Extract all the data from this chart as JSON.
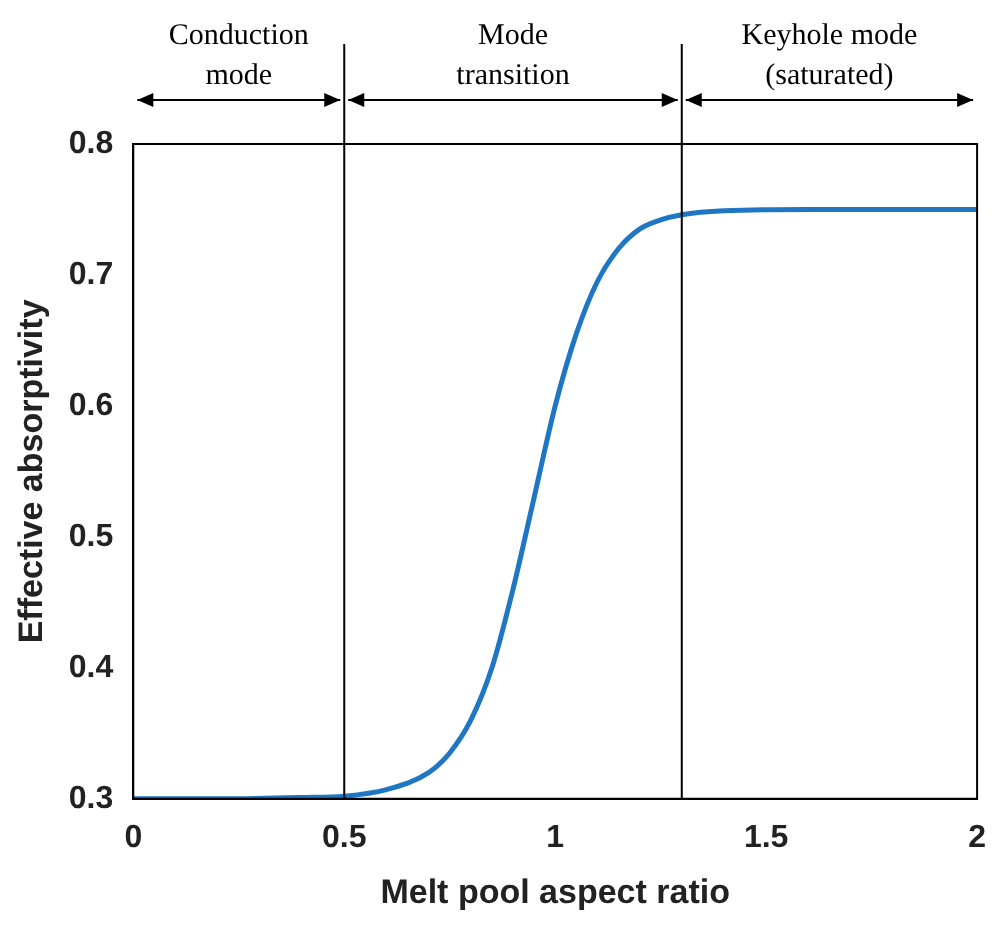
{
  "chart_data": {
    "type": "line",
    "xlabel": "Melt pool aspect ratio",
    "ylabel": "Effective absorptivity",
    "x": [
      0,
      0.2,
      0.4,
      0.5,
      0.6,
      0.7,
      0.75,
      0.8,
      0.85,
      0.9,
      0.95,
      1.0,
      1.05,
      1.1,
      1.15,
      1.2,
      1.25,
      1.3,
      1.4,
      1.6,
      1.8,
      2
    ],
    "series": [
      {
        "color": "#1f77c4",
        "values": [
          0.3,
          0.3,
          0.301,
          0.302,
          0.307,
          0.32,
          0.335,
          0.36,
          0.4,
          0.46,
          0.53,
          0.6,
          0.655,
          0.695,
          0.72,
          0.735,
          0.742,
          0.746,
          0.749,
          0.75,
          0.75,
          0.75
        ]
      }
    ],
    "xlim": [
      0,
      2
    ],
    "ylim": [
      0.3,
      0.8
    ],
    "xticks": [
      0,
      0.5,
      1,
      1.5,
      2
    ],
    "yticks": [
      0.3,
      0.4,
      0.5,
      0.6,
      0.7,
      0.8
    ],
    "ref_lines": [
      {
        "axis": "x",
        "value": 0.5,
        "color": "#000000"
      },
      {
        "axis": "x",
        "value": 1.3,
        "color": "#000000"
      }
    ],
    "annotations": [
      "Conduction mode",
      "Mode transition",
      "Keyhole mode (saturated)"
    ],
    "grid": false,
    "legend": false,
    "marker": "none",
    "line_style": "solid"
  }
}
